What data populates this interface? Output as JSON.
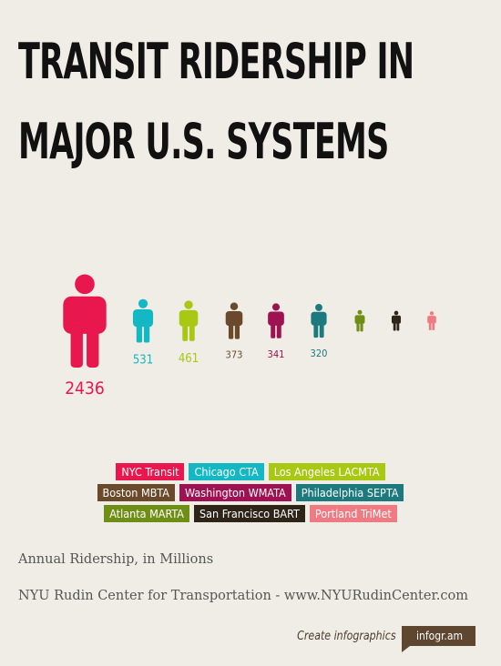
{
  "title": {
    "line1": "TRANSIT RIDERSHIP IN",
    "line2": "MAJOR U.S. SYSTEMS"
  },
  "chart_data": {
    "type": "pictograph",
    "unit": "Annual Ridership, in Millions",
    "series": [
      {
        "name": "NYC Transit",
        "value": 2436,
        "label": "2436",
        "color": "#e8174d"
      },
      {
        "name": "Chicago CTA",
        "value": 531,
        "label": "531",
        "color": "#14b8c4"
      },
      {
        "name": "Los Angeles LACMTA",
        "value": 461,
        "label": "461",
        "color": "#a8c814"
      },
      {
        "name": "Boston MBTA",
        "value": 373,
        "label": "373",
        "color": "#6b4a2c"
      },
      {
        "name": "Washington WMATA",
        "value": 341,
        "label": "341",
        "color": "#9e1252"
      },
      {
        "name": "Philadelphia SEPTA",
        "value": 320,
        "label": "320",
        "color": "#1c7a7e"
      },
      {
        "name": "Atlanta MARTA",
        "value": 130,
        "label": "",
        "color": "#6f8e16"
      },
      {
        "name": "San Francisco BART",
        "value": 110,
        "label": "",
        "color": "#2e2418"
      },
      {
        "name": "Portland TriMet",
        "value": 100,
        "label": "",
        "color": "#ef7a82"
      }
    ]
  },
  "legend": {
    "rows": [
      [
        {
          "label": "NYC Transit",
          "color": "#e8174d"
        },
        {
          "label": "Chicago CTA",
          "color": "#14b8c4"
        },
        {
          "label": "Los Angeles LACMTA",
          "color": "#a8c814"
        }
      ],
      [
        {
          "label": "Boston MBTA",
          "color": "#6b4a2c"
        },
        {
          "label": "Washington WMATA",
          "color": "#9e1252"
        },
        {
          "label": "Philadelphia SEPTA",
          "color": "#1c7a7e"
        }
      ],
      [
        {
          "label": "Atlanta MARTA",
          "color": "#6f8e16"
        },
        {
          "label": "San Francisco BART",
          "color": "#2e2418"
        },
        {
          "label": "Portland TriMet",
          "color": "#ef7a82"
        }
      ]
    ]
  },
  "caption": {
    "units": "Annual Ridership, in Millions",
    "source": "NYU Rudin Center for Transportation - www.NYURudinCenter.com"
  },
  "branding": {
    "text": "Create infographics",
    "badge": "infogr.am"
  }
}
